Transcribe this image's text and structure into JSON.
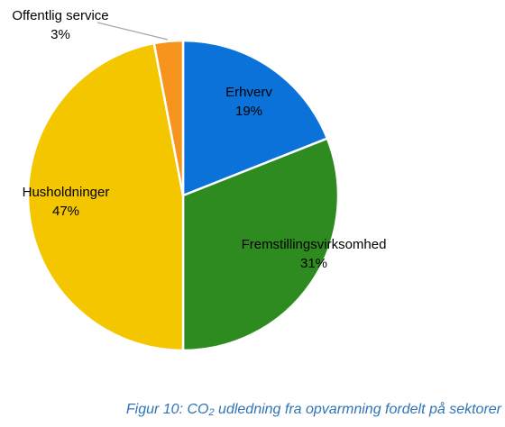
{
  "chart_data": {
    "type": "pie",
    "categories": [
      "Erhverv",
      "Fremstillingsvirksomhed",
      "Husholdninger",
      "Offentlig service"
    ],
    "values": [
      19,
      31,
      47,
      3
    ],
    "labels": [
      "19%",
      "31%",
      "47%",
      "3%"
    ],
    "colors": [
      "#0a72d8",
      "#2e8b1f",
      "#f3c600",
      "#f7941d"
    ],
    "start": "12 o'clock",
    "direction": "clockwise"
  },
  "caption": {
    "prefix": "Figur 10: CO",
    "subscript": "2",
    "suffix": " udledning fra opvarmning fordelt på sektorer"
  }
}
